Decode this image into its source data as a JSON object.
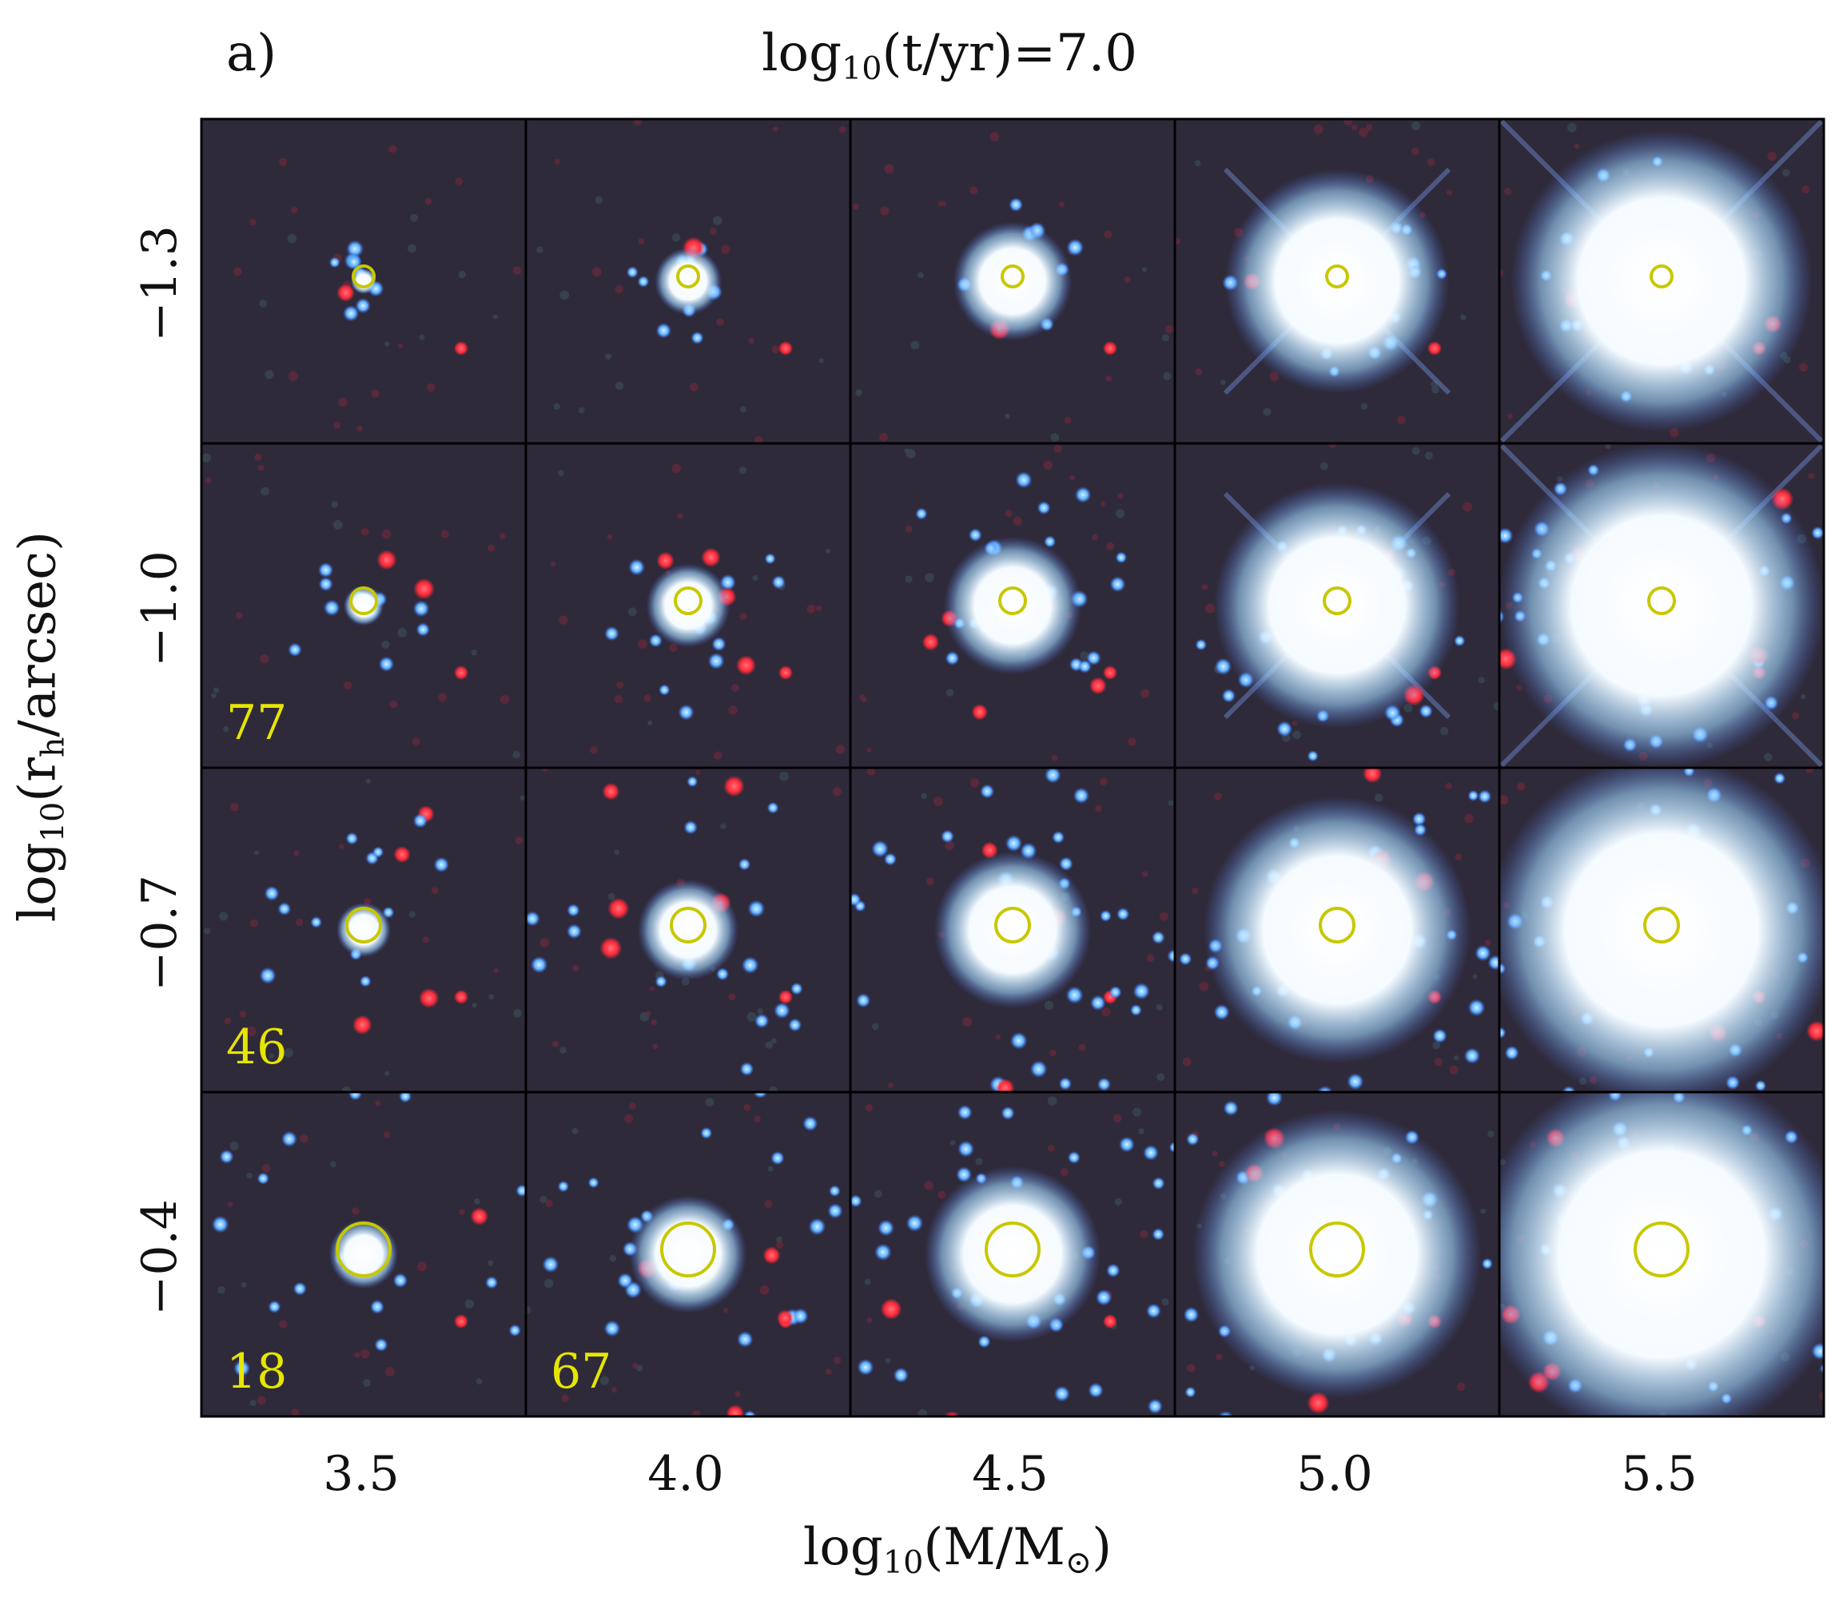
{
  "panel_label": "a)",
  "title": "log10(t/yr)=7.0",
  "title_parts": {
    "pre": "log",
    "sub": "10",
    "post": "(t/yr)=7.0"
  },
  "xlabel_parts": {
    "pre": "log",
    "sub": "10",
    "post": "(M/M",
    "sun": "⊙",
    "close": ")"
  },
  "ylabel_parts": {
    "pre": "log",
    "sub": "10",
    "post": "(r",
    "rsub": "h",
    "close": "/arcsec)"
  },
  "columns": [
    "3.5",
    "4.0",
    "4.5",
    "5.0",
    "5.5"
  ],
  "rows": [
    "−1.3",
    "−1.0",
    "−0.7",
    "−0.4"
  ],
  "grid": {
    "log10_mass": [
      3.5,
      4.0,
      4.5,
      5.0,
      5.5
    ],
    "log10_rh_arcsec": [
      -1.3,
      -1.0,
      -0.7,
      -0.4
    ]
  },
  "panel_counts": [
    {
      "row": 1,
      "col": 0,
      "text": "77"
    },
    {
      "row": 2,
      "col": 0,
      "text": "46"
    },
    {
      "row": 3,
      "col": 0,
      "text": "18"
    },
    {
      "row": 3,
      "col": 1,
      "text": "67"
    }
  ],
  "colors": {
    "background": "#2f2a3a",
    "circle": "#c8c800",
    "count_text": "#e6e600",
    "red_star": "#ff3040",
    "blue_star": "#5aa8ff",
    "core": "#ffffff"
  }
}
